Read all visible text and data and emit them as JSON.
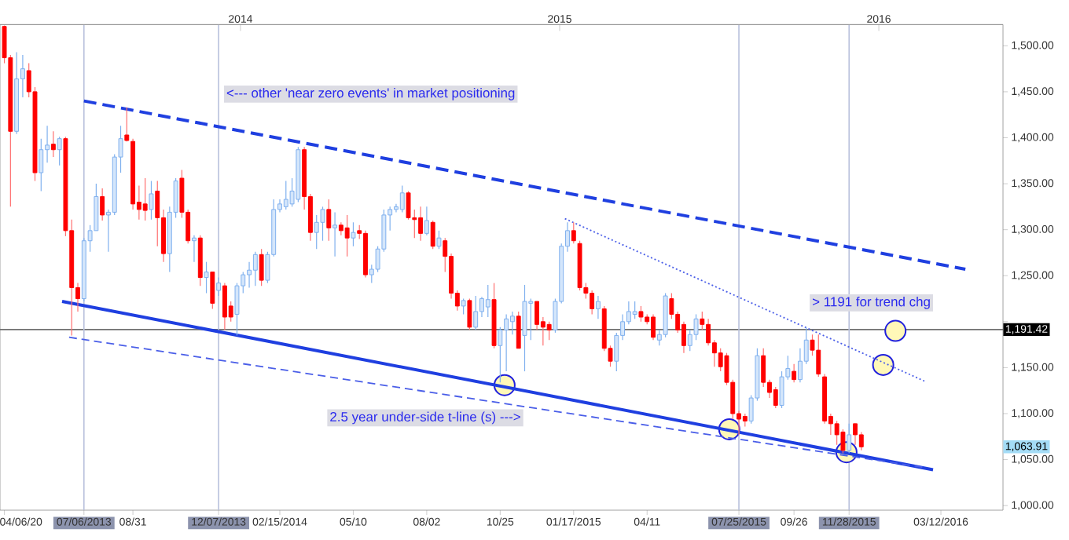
{
  "chart_data": {
    "type": "candlestick",
    "xlim": [
      "2013-04-01",
      "2016-05-22"
    ],
    "ylim": [
      995,
      1523
    ],
    "yticks": [
      {
        "value": 1000,
        "label": "1,000.00"
      },
      {
        "value": 1050,
        "label": "1,050.00"
      },
      {
        "value": 1100,
        "label": "1,100.00"
      },
      {
        "value": 1150,
        "label": "1,150.00"
      },
      {
        "value": 1200,
        "label": null
      },
      {
        "value": 1250,
        "label": "1,250.00"
      },
      {
        "value": 1300,
        "label": "1,300.00"
      },
      {
        "value": 1350,
        "label": "1,350.00"
      },
      {
        "value": 1400,
        "label": "1,400.00"
      },
      {
        "value": 1450,
        "label": "1,450.00"
      },
      {
        "value": 1500,
        "label": "1,500.00"
      }
    ],
    "xticks": [
      {
        "value": "2013-04-06",
        "label": "04/06/20"
      },
      {
        "value": "2013-07-06",
        "label": "07/06/2013"
      },
      {
        "value": "2013-08-31",
        "label": "08/31"
      },
      {
        "value": "2013-12-07",
        "label": "12/07/2013"
      },
      {
        "value": "2014-02-15",
        "label": "02/15/2014"
      },
      {
        "value": "2014-05-10",
        "label": "05/10"
      },
      {
        "value": "2014-08-02",
        "label": "08/02"
      },
      {
        "value": "2014-10-25",
        "label": "10/25"
      },
      {
        "value": "2015-01-17",
        "label": "01/17/2015"
      },
      {
        "value": "2015-04-11",
        "label": "04/11"
      },
      {
        "value": "2015-07-25",
        "label": "07/25/2015"
      },
      {
        "value": "2015-09-26",
        "label": "09/26"
      },
      {
        "value": "2015-11-28",
        "label": "11/28/2015"
      },
      {
        "value": "2016-03-12",
        "label": "03/12/2016"
      }
    ],
    "x2lim": [
      "2013-04-01",
      "2016-05-22"
    ],
    "x2ticks": [
      {
        "value": "2014-01-01",
        "label": "2014"
      },
      {
        "value": "2015-01-01",
        "label": "2015"
      },
      {
        "value": "2016-01-01",
        "label": "2016"
      }
    ],
    "series": [
      {
        "x": [
          "2013-04-06",
          "2013-04-13",
          "2013-04-20",
          "2013-04-27",
          "2013-05-04",
          "2013-05-11",
          "2013-05-18",
          "2013-05-25",
          "2013-06-01",
          "2013-06-08",
          "2013-06-15",
          "2013-06-22",
          "2013-06-29",
          "2013-07-06",
          "2013-07-13",
          "2013-07-20",
          "2013-07-27",
          "2013-08-03",
          "2013-08-10",
          "2013-08-17",
          "2013-08-24",
          "2013-08-31",
          "2013-09-07",
          "2013-09-14",
          "2013-09-21",
          "2013-09-28",
          "2013-10-05",
          "2013-10-12",
          "2013-10-19",
          "2013-10-26",
          "2013-11-02",
          "2013-11-09",
          "2013-11-16",
          "2013-11-23",
          "2013-11-30",
          "2013-12-07",
          "2013-12-14",
          "2013-12-21",
          "2013-12-28",
          "2014-01-04",
          "2014-01-11",
          "2014-01-18",
          "2014-01-25",
          "2014-02-01",
          "2014-02-08",
          "2014-02-15",
          "2014-02-22",
          "2014-03-01",
          "2014-03-08",
          "2014-03-15",
          "2014-03-22",
          "2014-03-29",
          "2014-04-05",
          "2014-04-12",
          "2014-04-19",
          "2014-04-26",
          "2014-05-03",
          "2014-05-10",
          "2014-05-17",
          "2014-05-24",
          "2014-05-31",
          "2014-06-07",
          "2014-06-14",
          "2014-06-21",
          "2014-06-28",
          "2014-07-05",
          "2014-07-12",
          "2014-07-19",
          "2014-07-26",
          "2014-08-02",
          "2014-08-09",
          "2014-08-16",
          "2014-08-23",
          "2014-08-30",
          "2014-09-06",
          "2014-09-13",
          "2014-09-20",
          "2014-09-27",
          "2014-10-04",
          "2014-10-11",
          "2014-10-18",
          "2014-10-25",
          "2014-11-01",
          "2014-11-08",
          "2014-11-15",
          "2014-11-22",
          "2014-11-29",
          "2014-12-06",
          "2014-12-13",
          "2014-12-20",
          "2014-12-27",
          "2015-01-03",
          "2015-01-10",
          "2015-01-17",
          "2015-01-24",
          "2015-01-31",
          "2015-02-07",
          "2015-02-14",
          "2015-02-21",
          "2015-02-28",
          "2015-03-07",
          "2015-03-14",
          "2015-03-21",
          "2015-03-28",
          "2015-04-04",
          "2015-04-11",
          "2015-04-18",
          "2015-04-25",
          "2015-05-02",
          "2015-05-09",
          "2015-05-16",
          "2015-05-23",
          "2015-05-30",
          "2015-06-06",
          "2015-06-13",
          "2015-06-20",
          "2015-06-27",
          "2015-07-04",
          "2015-07-11",
          "2015-07-18",
          "2015-07-25",
          "2015-08-01",
          "2015-08-08",
          "2015-08-15",
          "2015-08-22",
          "2015-08-29",
          "2015-09-05",
          "2015-09-12",
          "2015-09-19",
          "2015-09-26",
          "2015-10-03",
          "2015-10-10",
          "2015-10-17",
          "2015-10-24",
          "2015-10-31",
          "2015-11-07",
          "2015-11-14",
          "2015-11-21",
          "2015-11-28",
          "2015-12-05",
          "2015-12-12"
        ],
        "ohlc": [
          [
            1521,
            1522,
            1481,
            1487
          ],
          [
            1487,
            1490,
            1325,
            1407
          ],
          [
            1407,
            1493,
            1404,
            1464
          ],
          [
            1464,
            1490,
            1444,
            1475
          ],
          [
            1473,
            1481,
            1444,
            1450
          ],
          [
            1450,
            1455,
            1353,
            1362
          ],
          [
            1362,
            1399,
            1342,
            1387
          ],
          [
            1387,
            1413,
            1373,
            1392
          ],
          [
            1393,
            1407,
            1379,
            1387
          ],
          [
            1387,
            1401,
            1370,
            1399
          ],
          [
            1399,
            1401,
            1293,
            1299
          ],
          [
            1299,
            1311,
            1185,
            1237
          ],
          [
            1237,
            1242,
            1211,
            1225
          ],
          [
            1225,
            1291,
            1222,
            1288
          ],
          [
            1288,
            1305,
            1276,
            1299
          ],
          [
            1299,
            1350,
            1299,
            1336
          ],
          [
            1336,
            1345,
            1310,
            1316
          ],
          [
            1316,
            1322,
            1276,
            1319
          ],
          [
            1319,
            1382,
            1316,
            1379
          ],
          [
            1379,
            1413,
            1362,
            1399
          ],
          [
            1403,
            1433,
            1396,
            1397
          ],
          [
            1396,
            1399,
            1322,
            1328
          ],
          [
            1330,
            1348,
            1311,
            1322
          ],
          [
            1328,
            1356,
            1310,
            1321
          ],
          [
            1322,
            1353,
            1311,
            1339
          ],
          [
            1342,
            1353,
            1282,
            1313
          ],
          [
            1313,
            1322,
            1265,
            1274
          ],
          [
            1274,
            1325,
            1254,
            1319
          ],
          [
            1319,
            1356,
            1313,
            1353
          ],
          [
            1356,
            1365,
            1313,
            1319
          ],
          [
            1319,
            1322,
            1285,
            1288
          ],
          [
            1288,
            1294,
            1265,
            1291
          ],
          [
            1291,
            1294,
            1239,
            1248
          ],
          [
            1248,
            1265,
            1231,
            1254
          ],
          [
            1254,
            1254,
            1214,
            1220
          ],
          [
            1234,
            1248,
            1228,
            1242
          ],
          [
            1239,
            1242,
            1191,
            1205
          ],
          [
            1217,
            1222,
            1200,
            1205
          ],
          [
            1208,
            1242,
            1185,
            1239
          ],
          [
            1239,
            1254,
            1231,
            1251
          ],
          [
            1251,
            1265,
            1237,
            1256
          ],
          [
            1256,
            1276,
            1239,
            1273
          ],
          [
            1273,
            1279,
            1239,
            1245
          ],
          [
            1245,
            1276,
            1242,
            1273
          ],
          [
            1273,
            1333,
            1271,
            1322
          ],
          [
            1322,
            1333,
            1319,
            1328
          ],
          [
            1325,
            1353,
            1322,
            1333
          ],
          [
            1328,
            1356,
            1325,
            1342
          ],
          [
            1333,
            1390,
            1330,
            1387
          ],
          [
            1387,
            1390,
            1322,
            1336
          ],
          [
            1336,
            1339,
            1288,
            1297
          ],
          [
            1297,
            1316,
            1279,
            1308
          ],
          [
            1308,
            1325,
            1288,
            1322
          ],
          [
            1322,
            1333,
            1288,
            1302
          ],
          [
            1302,
            1319,
            1271,
            1305
          ],
          [
            1305,
            1308,
            1294,
            1299
          ],
          [
            1302,
            1316,
            1271,
            1291
          ],
          [
            1291,
            1308,
            1282,
            1297
          ],
          [
            1299,
            1305,
            1290,
            1296
          ],
          [
            1296,
            1299,
            1248,
            1251
          ],
          [
            1251,
            1262,
            1242,
            1257
          ],
          [
            1257,
            1282,
            1254,
            1279
          ],
          [
            1279,
            1322,
            1276,
            1316
          ],
          [
            1316,
            1325,
            1299,
            1322
          ],
          [
            1322,
            1328,
            1319,
            1325
          ],
          [
            1322,
            1348,
            1319,
            1340
          ],
          [
            1340,
            1342,
            1311,
            1313
          ],
          [
            1313,
            1322,
            1291,
            1311
          ],
          [
            1313,
            1325,
            1288,
            1296
          ],
          [
            1296,
            1325,
            1294,
            1310
          ],
          [
            1308,
            1310,
            1279,
            1282
          ],
          [
            1282,
            1299,
            1279,
            1291
          ],
          [
            1288,
            1291,
            1254,
            1271
          ],
          [
            1271,
            1274,
            1225,
            1231
          ],
          [
            1231,
            1234,
            1212,
            1217
          ],
          [
            1217,
            1225,
            1208,
            1223
          ],
          [
            1223,
            1225,
            1191,
            1194
          ],
          [
            1194,
            1228,
            1191,
            1211
          ],
          [
            1211,
            1227,
            1205,
            1225
          ],
          [
            1216,
            1240,
            1205,
            1224
          ],
          [
            1224,
            1242,
            1171,
            1174
          ],
          [
            1174,
            1194,
            1134,
            1191
          ],
          [
            1191,
            1208,
            1146,
            1203
          ],
          [
            1200,
            1211,
            1186,
            1206
          ],
          [
            1206,
            1211,
            1171,
            1171
          ],
          [
            1185,
            1240,
            1146,
            1222
          ],
          [
            1220,
            1225,
            1180,
            1222
          ],
          [
            1222,
            1222,
            1191,
            1197
          ],
          [
            1200,
            1205,
            1174,
            1194
          ],
          [
            1197,
            1200,
            1180,
            1191
          ],
          [
            1191,
            1225,
            1188,
            1222
          ],
          [
            1222,
            1285,
            1220,
            1282
          ],
          [
            1282,
            1308,
            1276,
            1299
          ],
          [
            1299,
            1308,
            1285,
            1288
          ],
          [
            1285,
            1288,
            1234,
            1237
          ],
          [
            1237,
            1242,
            1225,
            1231
          ],
          [
            1231,
            1234,
            1208,
            1214
          ],
          [
            1214,
            1228,
            1203,
            1222
          ],
          [
            1214,
            1217,
            1168,
            1171
          ],
          [
            1171,
            1174,
            1151,
            1157
          ],
          [
            1157,
            1188,
            1146,
            1185
          ],
          [
            1185,
            1208,
            1180,
            1200
          ],
          [
            1200,
            1222,
            1197,
            1211
          ],
          [
            1208,
            1222,
            1203,
            1211
          ],
          [
            1211,
            1217,
            1200,
            1205
          ],
          [
            1205,
            1208,
            1197,
            1200
          ],
          [
            1205,
            1208,
            1180,
            1183
          ],
          [
            1180,
            1191,
            1174,
            1186
          ],
          [
            1186,
            1231,
            1183,
            1228
          ],
          [
            1225,
            1231,
            1203,
            1208
          ],
          [
            1208,
            1211,
            1188,
            1191
          ],
          [
            1197,
            1200,
            1166,
            1174
          ],
          [
            1174,
            1191,
            1168,
            1186
          ],
          [
            1186,
            1208,
            1180,
            1203
          ],
          [
            1203,
            1211,
            1191,
            1197
          ],
          [
            1197,
            1203,
            1174,
            1177
          ],
          [
            1177,
            1180,
            1151,
            1166
          ],
          [
            1166,
            1171,
            1146,
            1151
          ],
          [
            1163,
            1166,
            1131,
            1134
          ],
          [
            1134,
            1137,
            1094,
            1100
          ],
          [
            1100,
            1103,
            1077,
            1094
          ],
          [
            1097,
            1100,
            1086,
            1092
          ],
          [
            1092,
            1120,
            1089,
            1117
          ],
          [
            1117,
            1171,
            1114,
            1163
          ],
          [
            1163,
            1171,
            1129,
            1134
          ],
          [
            1134,
            1137,
            1117,
            1123
          ],
          [
            1126,
            1129,
            1106,
            1109
          ],
          [
            1109,
            1146,
            1106,
            1140
          ],
          [
            1140,
            1163,
            1137,
            1149
          ],
          [
            1146,
            1154,
            1134,
            1137
          ],
          [
            1137,
            1171,
            1134,
            1157
          ],
          [
            1157,
            1194,
            1154,
            1180
          ],
          [
            1180,
            1186,
            1163,
            1169
          ],
          [
            1169,
            1186,
            1140,
            1143
          ],
          [
            1140,
            1143,
            1089,
            1092
          ],
          [
            1097,
            1100,
            1077,
            1089
          ],
          [
            1089,
            1092,
            1066,
            1077
          ],
          [
            1080,
            1083,
            1057,
            1060
          ],
          [
            1060,
            1089,
            1057,
            1077
          ],
          [
            1089,
            1089,
            1066,
            1077
          ],
          [
            1077,
            1080,
            1060,
            1063.91
          ]
        ]
      },
      {
        "type": "line",
        "line_style": "dashed",
        "color": "#1f3fe0",
        "x": [
          "2013-07-06",
          "2016-04-09"
        ],
        "values": [
          1440,
          1257
        ]
      },
      {
        "type": "line",
        "line_style": "solid",
        "color": "#1f3fe0",
        "x": [
          "2013-06-11",
          "2016-03-03"
        ],
        "values": [
          1222,
          1039
        ]
      },
      {
        "type": "line",
        "line_style": "dashed",
        "color": "#4a5ee8",
        "x": [
          "2013-06-19",
          "2016-02-25"
        ],
        "values": [
          1183,
          1041
        ]
      },
      {
        "type": "line",
        "line_style": "dotted",
        "color": "#4a5ee8",
        "x": [
          "2015-01-07",
          "2016-02-23"
        ],
        "values": [
          1312,
          1135
        ]
      },
      {
        "type": "scatter",
        "marker": "circle",
        "color": "#fff8b8",
        "x": [
          "2014-10-30",
          "2015-07-14",
          "2015-11-25",
          "2016-01-06",
          "2016-01-20"
        ],
        "values": [
          1131,
          1083,
          1058,
          1153,
          1190
        ]
      }
    ],
    "ref_lines": [
      {
        "axis": "x",
        "value": "2013-07-06",
        "color": "#b8c0dc"
      },
      {
        "axis": "x",
        "value": "2013-12-07",
        "color": "#b8c0dc"
      },
      {
        "axis": "x",
        "value": "2015-07-25",
        "color": "#b8c0dc"
      },
      {
        "axis": "x",
        "value": "2015-11-28",
        "color": "#b8c0dc"
      },
      {
        "axis": "y",
        "value": 1191.42,
        "label": "1,191.42",
        "color": "#707070"
      }
    ],
    "annotations": [
      "<--- other 'near zero events' in market positioning",
      "2.5 year under-side t-line (s) --->",
      "> 1191 for trend chg",
      "1,063.91"
    ]
  }
}
